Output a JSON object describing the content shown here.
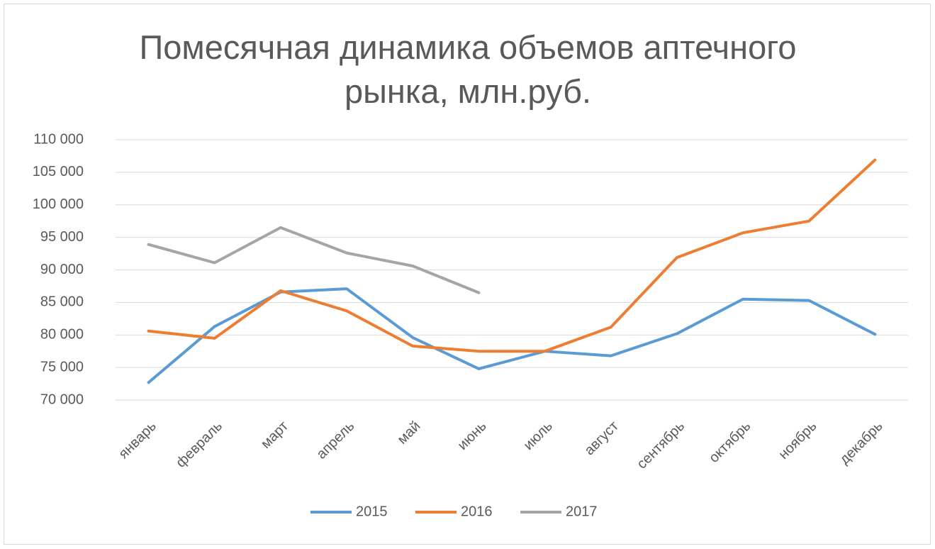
{
  "chart_data": {
    "type": "line",
    "title": "Помесячная динамика объемов аптечного рынка, млн.руб.",
    "categories": [
      "январь",
      "февраль",
      "март",
      "апрель",
      "май",
      "июнь",
      "июль",
      "август",
      "сентябрь",
      "октябрь",
      "ноябрь",
      "декабрь"
    ],
    "series": [
      {
        "name": "2015",
        "color": "#5b9bd5",
        "values": [
          72700,
          81300,
          86600,
          87100,
          79600,
          74800,
          77500,
          76800,
          80200,
          85500,
          85300,
          80100
        ]
      },
      {
        "name": "2016",
        "color": "#ed7d31",
        "values": [
          80600,
          79500,
          86800,
          83700,
          78300,
          77500,
          77500,
          81200,
          91900,
          95700,
          97500,
          106900
        ]
      },
      {
        "name": "2017",
        "color": "#a5a5a5",
        "values": [
          93900,
          91100,
          96500,
          92600,
          90600,
          86500,
          null,
          null,
          null,
          null,
          null,
          null
        ]
      }
    ],
    "ylim": [
      70000,
      110000
    ],
    "yticks": [
      {
        "value": 70000,
        "label": "70 000"
      },
      {
        "value": 75000,
        "label": "75 000"
      },
      {
        "value": 80000,
        "label": "80 000"
      },
      {
        "value": 85000,
        "label": "85 000"
      },
      {
        "value": 90000,
        "label": "90 000"
      },
      {
        "value": 95000,
        "label": "95 000"
      },
      {
        "value": 100000,
        "label": "100 000"
      },
      {
        "value": 105000,
        "label": "105 000"
      },
      {
        "value": 110000,
        "label": "110 000"
      }
    ],
    "grid": true,
    "legend": "bottom"
  }
}
